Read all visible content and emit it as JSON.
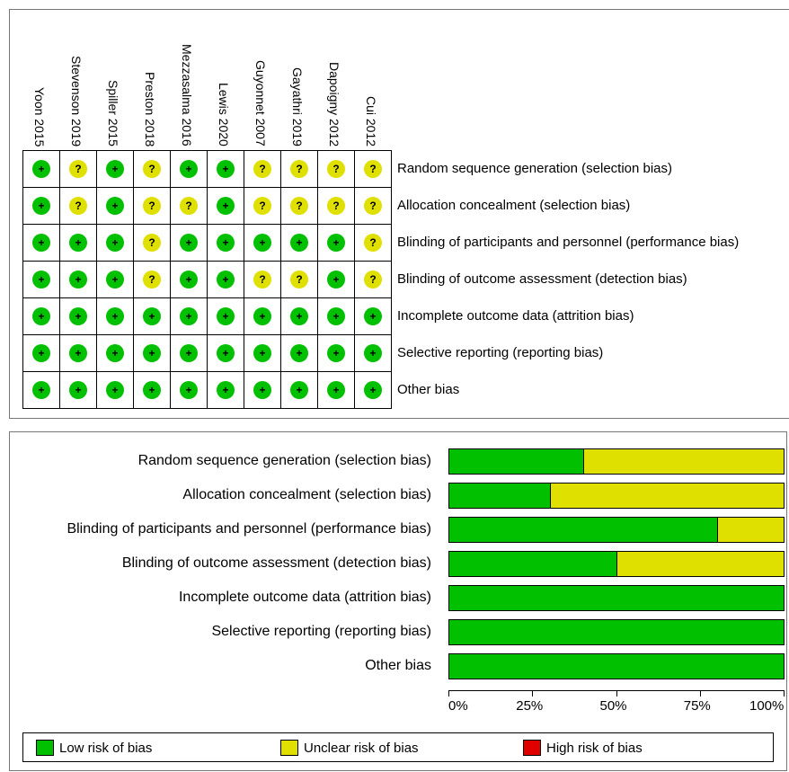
{
  "chart_data": [
    {
      "type": "table",
      "studies": [
        "Yoon 2015",
        "Stevenson 2019",
        "Spiller 2015",
        "Preston 2018",
        "Mezzasalma 2016",
        "Lewis 2020",
        "Guyonnet 2007",
        "Gayathri 2019",
        "Dapoigny 2012",
        "Cui 2012"
      ],
      "domains": [
        "Random sequence generation (selection bias)",
        "Allocation concealment (selection bias)",
        "Blinding of participants and personnel (performance bias)",
        "Blinding of outcome assessment (detection bias)",
        "Incomplete outcome data (attrition bias)",
        "Selective reporting (reporting bias)",
        "Other bias"
      ],
      "judgements": [
        [
          "low",
          "unclear",
          "low",
          "unclear",
          "low",
          "low",
          "unclear",
          "unclear",
          "unclear",
          "unclear"
        ],
        [
          "low",
          "unclear",
          "low",
          "unclear",
          "unclear",
          "low",
          "unclear",
          "unclear",
          "unclear",
          "unclear"
        ],
        [
          "low",
          "low",
          "low",
          "unclear",
          "low",
          "low",
          "low",
          "low",
          "low",
          "unclear"
        ],
        [
          "low",
          "low",
          "low",
          "unclear",
          "low",
          "low",
          "unclear",
          "unclear",
          "low",
          "unclear"
        ],
        [
          "low",
          "low",
          "low",
          "low",
          "low",
          "low",
          "low",
          "low",
          "low",
          "low"
        ],
        [
          "low",
          "low",
          "low",
          "low",
          "low",
          "low",
          "low",
          "low",
          "low",
          "low"
        ],
        [
          "low",
          "low",
          "low",
          "low",
          "low",
          "low",
          "low",
          "low",
          "low",
          "low"
        ]
      ],
      "symbols": {
        "low": "+",
        "unclear": "?",
        "high": "-"
      }
    },
    {
      "type": "bar",
      "orientation": "horizontal",
      "stacked": true,
      "categories": [
        "Random sequence generation (selection bias)",
        "Allocation concealment (selection bias)",
        "Blinding of participants and personnel (performance bias)",
        "Blinding of outcome assessment (detection bias)",
        "Incomplete outcome data (attrition bias)",
        "Selective reporting (reporting bias)",
        "Other bias"
      ],
      "series": [
        {
          "name": "Low risk of bias",
          "color": "#00c000",
          "values": [
            40,
            30,
            80,
            50,
            100,
            100,
            100
          ]
        },
        {
          "name": "Unclear risk of bias",
          "color": "#e0e000",
          "values": [
            60,
            70,
            20,
            50,
            0,
            0,
            0
          ]
        },
        {
          "name": "High risk of bias",
          "color": "#e00000",
          "values": [
            0,
            0,
            0,
            0,
            0,
            0,
            0
          ]
        }
      ],
      "xlim": [
        0,
        100
      ],
      "xticks": [
        "0%",
        "25%",
        "50%",
        "75%",
        "100%"
      ],
      "legend_position": "bottom"
    }
  ]
}
